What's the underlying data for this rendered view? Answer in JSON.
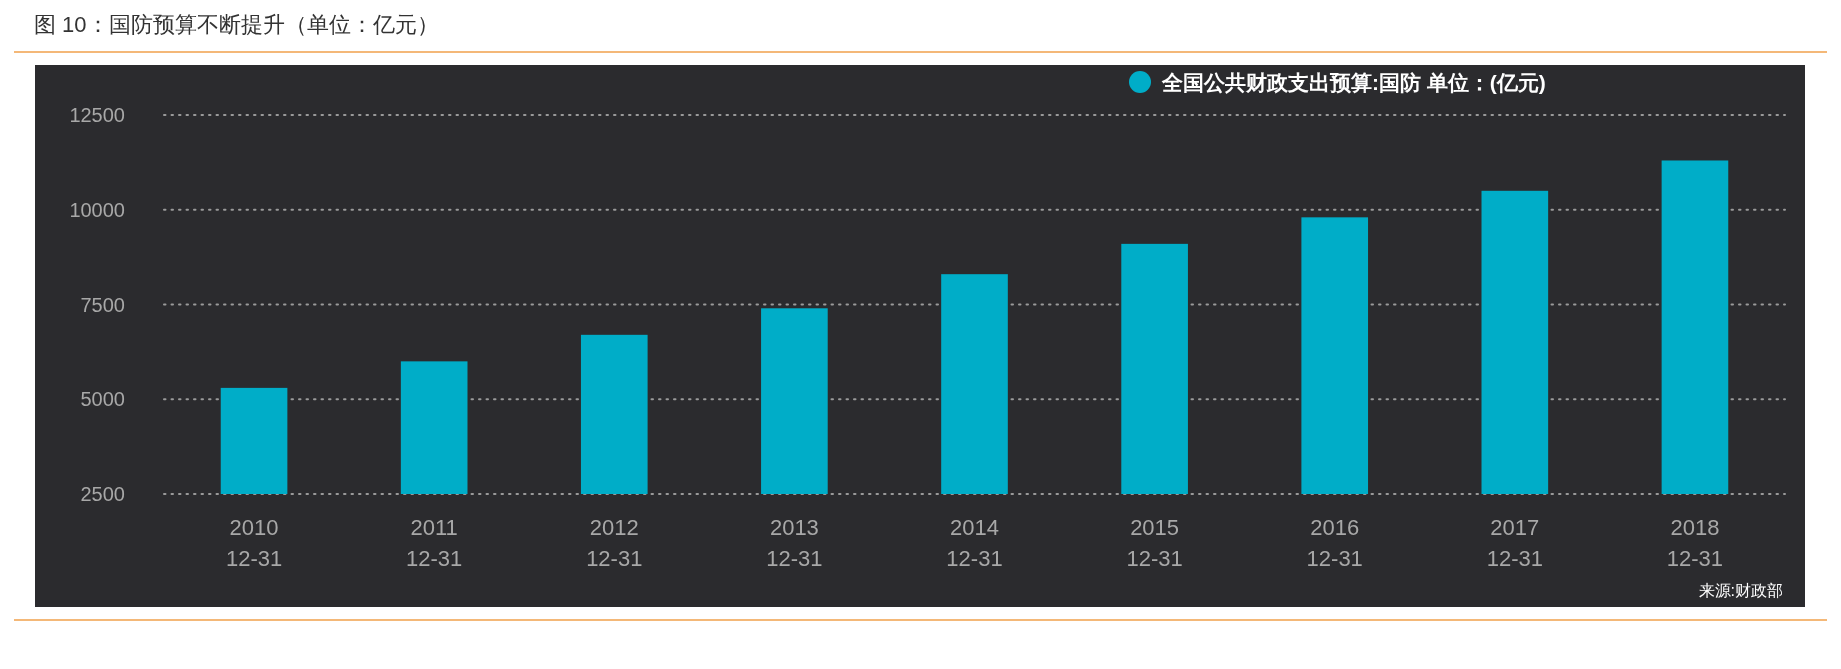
{
  "chart_data": {
    "type": "bar",
    "title": "图 10：国防预算不断提升（单位：亿元）",
    "categories": [
      "2010\n12-31",
      "2011\n12-31",
      "2012\n12-31",
      "2013\n12-31",
      "2014\n12-31",
      "2015\n12-31",
      "2016\n12-31",
      "2017\n12-31",
      "2018\n12-31"
    ],
    "series": [
      {
        "name": "全国公共财政支出预算:国防 单位：(亿元)",
        "color": "#00adc8",
        "values": [
          5300,
          6000,
          6700,
          7400,
          8300,
          9100,
          9800,
          10500,
          11300
        ]
      }
    ],
    "ylim": [
      2500,
      12500
    ],
    "yticks": [
      2500,
      5000,
      7500,
      10000,
      12500
    ],
    "grid": "y",
    "legend": "top right",
    "annotations": [
      "来源:财政部"
    ]
  }
}
